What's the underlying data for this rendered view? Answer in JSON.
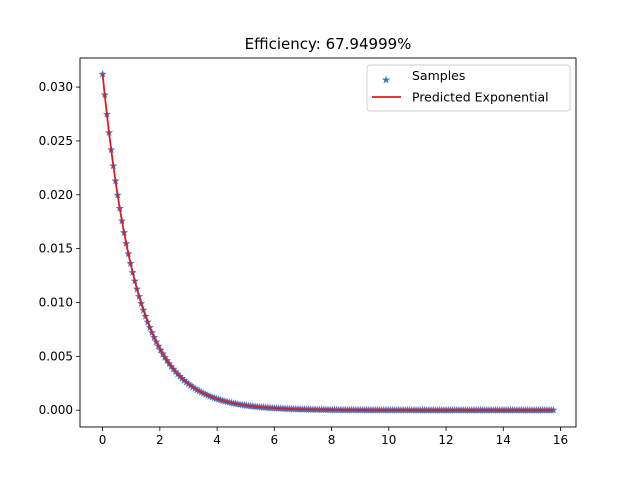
{
  "chart_data": {
    "type": "line",
    "title": "Efficiency: 67.94999%",
    "xlabel": "",
    "ylabel": "",
    "xlim": [
      -0.79,
      16.54
    ],
    "ylim": [
      -0.00156,
      0.0327
    ],
    "xticks": [
      0,
      2,
      4,
      6,
      8,
      10,
      12,
      14,
      16
    ],
    "yticks": [
      0.0,
      0.005,
      0.01,
      0.015,
      0.02,
      0.025,
      0.03
    ],
    "xtick_labels": [
      "0",
      "2",
      "4",
      "6",
      "8",
      "10",
      "12",
      "14",
      "16"
    ],
    "ytick_labels": [
      "0.000",
      "0.005",
      "0.010",
      "0.015",
      "0.020",
      "0.025",
      "0.030"
    ],
    "grid": false,
    "legend_position": "top-right",
    "samples": {
      "x_start": 0.0,
      "x_end": 15.75,
      "count": 211,
      "amplitude": 0.0312,
      "rate": 0.85
    },
    "series": [
      {
        "name": "Samples",
        "kind": "marker",
        "marker": "star",
        "color": "#4472c4",
        "function": "y = 0.0312 * exp(-0.85 * x)"
      },
      {
        "name": "Predicted Exponential",
        "kind": "line",
        "color": "#e31a1c",
        "function": "y = 0.0312 * exp(-0.85 * x)"
      }
    ]
  }
}
